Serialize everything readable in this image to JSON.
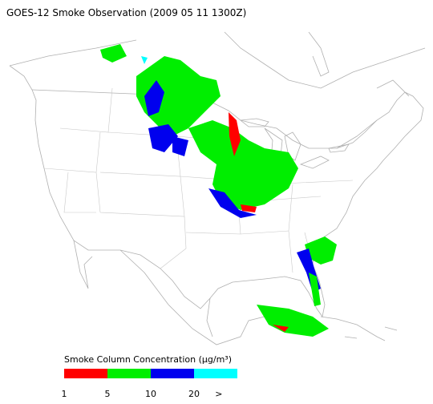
{
  "title": "GOES-12 Smoke Observation (2009 05 11  1300Z)",
  "legend": {
    "title": "Smoke Column Concentration (μg/m³)",
    "bins": [
      {
        "color": "#ff0000"
      },
      {
        "color": "#00ee00"
      },
      {
        "color": "#0000ee"
      },
      {
        "color": "#00ffff"
      }
    ],
    "labels": [
      "1",
      "5",
      "10",
      "20",
      ">"
    ]
  }
}
